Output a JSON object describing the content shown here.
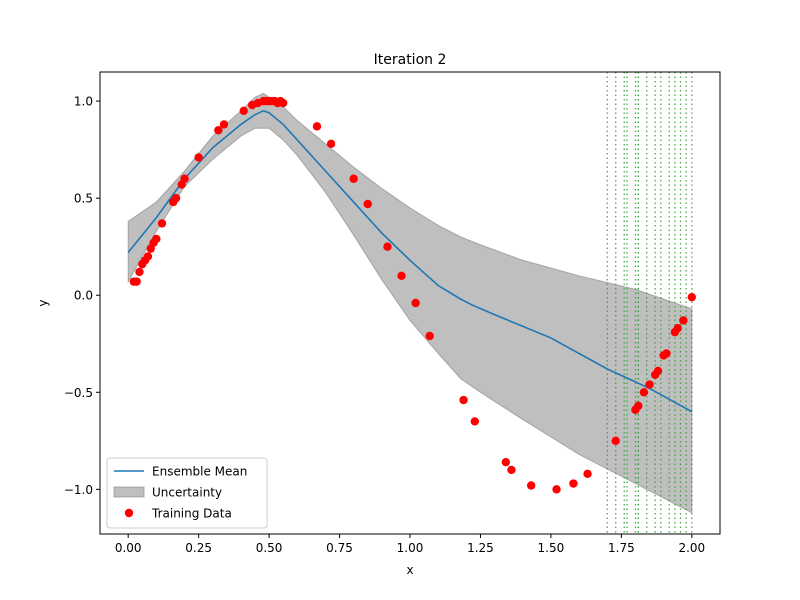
{
  "chart_data": {
    "type": "line",
    "title": "Iteration 2",
    "xlabel": "x",
    "ylabel": "y",
    "xlim": [
      -0.1,
      2.1
    ],
    "ylim": [
      -1.23,
      1.15
    ],
    "xticks": [
      0.0,
      0.25,
      0.5,
      0.75,
      1.0,
      1.25,
      1.5,
      1.75,
      2.0
    ],
    "xtick_labels": [
      "0.00",
      "0.25",
      "0.50",
      "0.75",
      "1.00",
      "1.25",
      "1.50",
      "1.75",
      "2.00"
    ],
    "yticks": [
      -1.0,
      -0.5,
      0.0,
      0.5,
      1.0
    ],
    "ytick_labels": [
      "−1.0",
      "−0.5",
      "0.0",
      "0.5",
      "1.0"
    ],
    "grid": false,
    "legend_position": "lower-left",
    "legend": [
      {
        "label": "Ensemble Mean",
        "kind": "line",
        "color": "#1f77b4"
      },
      {
        "label": "Uncertainty",
        "kind": "band",
        "color": "#808080"
      },
      {
        "label": "Training Data",
        "kind": "marker",
        "color": "#ff0000"
      }
    ],
    "series": [
      {
        "name": "Ensemble Mean",
        "type": "line",
        "color": "#1f77b4",
        "x": [
          0.0,
          0.1,
          0.2,
          0.3,
          0.4,
          0.45,
          0.48,
          0.5,
          0.55,
          0.6,
          0.7,
          0.8,
          0.9,
          1.0,
          1.1,
          1.18,
          1.22,
          1.3,
          1.5,
          1.7,
          1.85,
          2.0
        ],
        "y": [
          0.22,
          0.4,
          0.6,
          0.76,
          0.88,
          0.93,
          0.95,
          0.94,
          0.88,
          0.8,
          0.64,
          0.48,
          0.32,
          0.18,
          0.05,
          -0.02,
          -0.05,
          -0.1,
          -0.22,
          -0.38,
          -0.48,
          -0.6
        ]
      },
      {
        "name": "Uncertainty",
        "type": "band",
        "color": "#808080",
        "opacity": 0.5,
        "x": [
          0.0,
          0.1,
          0.2,
          0.3,
          0.4,
          0.45,
          0.48,
          0.5,
          0.55,
          0.6,
          0.7,
          0.8,
          0.9,
          1.0,
          1.1,
          1.18,
          1.25,
          1.4,
          1.6,
          1.8,
          2.0
        ],
        "upper": [
          0.38,
          0.48,
          0.64,
          0.82,
          0.95,
          1.02,
          1.04,
          1.02,
          0.97,
          0.9,
          0.78,
          0.66,
          0.55,
          0.45,
          0.36,
          0.3,
          0.26,
          0.18,
          0.1,
          0.03,
          -0.07
        ],
        "lower": [
          0.07,
          0.33,
          0.56,
          0.7,
          0.82,
          0.86,
          0.86,
          0.86,
          0.8,
          0.72,
          0.53,
          0.31,
          0.08,
          -0.13,
          -0.3,
          -0.43,
          -0.5,
          -0.64,
          -0.82,
          -0.97,
          -1.12
        ]
      },
      {
        "name": "Training Data",
        "type": "scatter",
        "color": "#ff0000",
        "x": [
          0.02,
          0.03,
          0.04,
          0.05,
          0.06,
          0.07,
          0.08,
          0.09,
          0.1,
          0.12,
          0.16,
          0.17,
          0.19,
          0.2,
          0.25,
          0.32,
          0.34,
          0.41,
          0.44,
          0.46,
          0.48,
          0.49,
          0.5,
          0.51,
          0.52,
          0.53,
          0.54,
          0.55,
          0.67,
          0.72,
          0.8,
          0.85,
          0.92,
          0.97,
          1.02,
          1.07,
          1.19,
          1.23,
          1.34,
          1.36,
          1.43,
          1.52,
          1.58,
          1.63,
          1.73,
          1.8,
          1.81,
          1.83,
          1.85,
          1.87,
          1.88,
          1.9,
          1.91,
          1.94,
          1.95,
          1.97,
          2.0
        ],
        "y": [
          0.07,
          0.07,
          0.12,
          0.16,
          0.18,
          0.2,
          0.24,
          0.27,
          0.29,
          0.37,
          0.48,
          0.5,
          0.57,
          0.6,
          0.71,
          0.85,
          0.88,
          0.95,
          0.98,
          0.99,
          1.0,
          1.0,
          1.0,
          1.0,
          1.0,
          0.99,
          1.0,
          0.99,
          0.87,
          0.78,
          0.6,
          0.47,
          0.25,
          0.1,
          -0.04,
          -0.21,
          -0.54,
          -0.65,
          -0.86,
          -0.9,
          -0.98,
          -1.0,
          -0.97,
          -0.92,
          -0.75,
          -0.59,
          -0.57,
          -0.5,
          -0.46,
          -0.41,
          -0.39,
          -0.31,
          -0.3,
          -0.19,
          -0.17,
          -0.13,
          -0.01
        ]
      }
    ],
    "vertical_lines": {
      "style": "dotted",
      "color": "#2ca02c",
      "x": [
        1.7,
        1.73,
        1.76,
        1.77,
        1.8,
        1.81,
        1.81,
        1.84,
        1.87,
        1.89,
        1.92,
        1.94,
        1.96,
        1.98,
        2.0
      ]
    }
  }
}
